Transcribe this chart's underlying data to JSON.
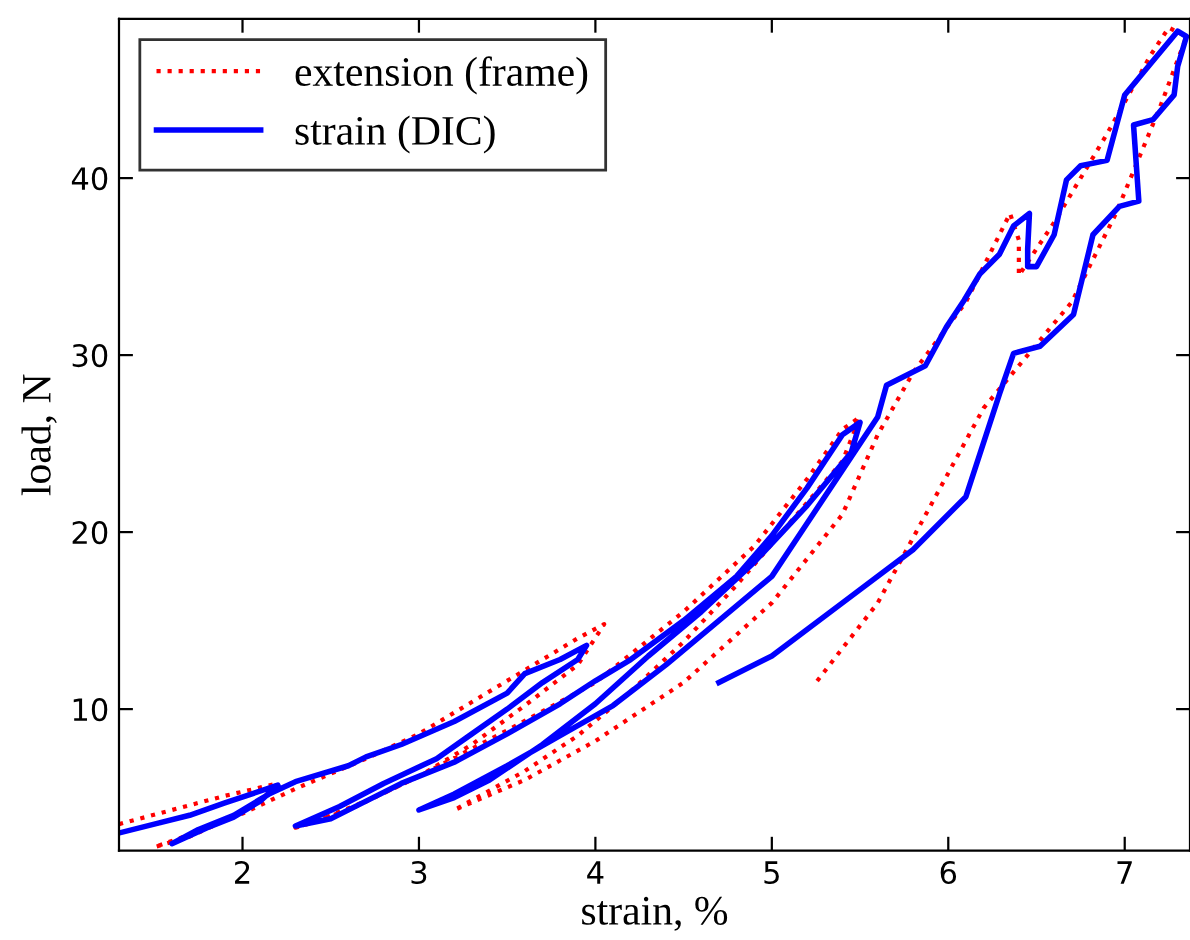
{
  "chart_data": {
    "type": "line",
    "xlabel": "strain, %",
    "ylabel": "load, N",
    "xlim": [
      1.3,
      7.37
    ],
    "ylim": [
      2.0,
      49.0
    ],
    "xticks": [
      2,
      3,
      4,
      5,
      6,
      7
    ],
    "yticks": [
      10,
      20,
      30,
      40
    ],
    "legend": "top left",
    "grid": false,
    "series": [
      {
        "name": "extension (frame)",
        "color": "#ff0000",
        "line_style": "dotted",
        "x": [
          1.3,
          1.6,
          1.9,
          2.2,
          2.1,
          1.9,
          1.7,
          1.5,
          1.7,
          2.0,
          2.3,
          2.7,
          3.0,
          3.3,
          3.6,
          3.9,
          4.05,
          3.9,
          3.6,
          3.3,
          3.0,
          2.7,
          2.4,
          2.3,
          2.6,
          3.0,
          3.5,
          4.0,
          4.5,
          4.9,
          5.2,
          5.4,
          5.5,
          5.4,
          5.1,
          4.8,
          4.5,
          4.2,
          3.9,
          3.6,
          3.2,
          3.6,
          4.0,
          4.5,
          5.0,
          5.4,
          5.6,
          5.8,
          6.1,
          6.35,
          6.4,
          6.4,
          6.6,
          6.9,
          7.15,
          7.25,
          7.35,
          7.2,
          6.95,
          6.7,
          6.45,
          6.2,
          5.9,
          5.6,
          5.25
        ],
        "values": [
          3.5,
          4.3,
          5.1,
          5.8,
          4.8,
          3.7,
          2.8,
          2.2,
          2.9,
          4.1,
          5.5,
          7.2,
          8.6,
          10.4,
          12.2,
          14.0,
          14.8,
          12.5,
          10.2,
          8.0,
          6.2,
          4.8,
          3.6,
          3.3,
          4.3,
          6.2,
          8.8,
          11.5,
          15.5,
          19.2,
          23.0,
          25.8,
          26.5,
          24.0,
          20.5,
          17.0,
          13.8,
          11.0,
          8.5,
          6.5,
          4.3,
          6.0,
          8.2,
          11.5,
          16.0,
          21.0,
          25.5,
          29.0,
          33.0,
          38.0,
          36.5,
          34.5,
          37.5,
          42.5,
          47.0,
          48.5,
          48.0,
          44.0,
          38.0,
          33.0,
          30.0,
          27.0,
          21.5,
          16.0,
          11.5
        ]
      },
      {
        "name": "strain (DIC)",
        "color": "#0000ff",
        "line_style": "solid",
        "x": [
          1.3,
          1.5,
          1.7,
          1.9,
          2.05,
          2.2,
          2.1,
          1.95,
          1.8,
          1.6,
          1.75,
          1.95,
          2.15,
          2.3,
          2.6,
          2.7,
          2.9,
          3.2,
          3.5,
          3.6,
          3.8,
          3.95,
          3.9,
          3.7,
          3.5,
          3.3,
          3.1,
          2.8,
          2.55,
          2.3,
          2.5,
          2.7,
          2.9,
          3.2,
          3.5,
          3.8,
          4.0,
          4.2,
          4.5,
          4.8,
          5.0,
          5.2,
          5.4,
          5.5,
          5.45,
          5.2,
          4.9,
          4.6,
          4.3,
          4.0,
          3.7,
          3.4,
          3.2,
          3.0,
          3.2,
          3.5,
          3.8,
          4.1,
          4.4,
          4.7,
          5.0,
          5.2,
          5.4,
          5.6,
          5.65,
          5.87,
          5.99,
          6.09,
          6.18,
          6.29,
          6.37,
          6.46,
          6.45,
          6.45,
          6.5,
          6.6,
          6.67,
          6.75,
          6.9,
          7.0,
          7.15,
          7.3,
          7.35,
          7.3,
          7.28,
          7.16,
          7.05,
          7.08,
          6.97,
          6.82,
          6.71,
          6.52,
          6.37,
          6.29,
          6.1,
          5.8,
          5.4,
          5.0,
          4.7
        ],
        "values": [
          3.0,
          3.5,
          4.0,
          4.7,
          5.2,
          5.7,
          4.8,
          3.9,
          3.3,
          2.4,
          3.2,
          4.0,
          5.2,
          5.9,
          6.8,
          7.3,
          8.0,
          9.3,
          10.9,
          12.0,
          12.8,
          13.6,
          12.8,
          11.5,
          10.0,
          8.6,
          7.2,
          5.8,
          4.5,
          3.4,
          3.8,
          4.8,
          5.8,
          7.0,
          8.6,
          10.3,
          11.6,
          12.8,
          15.0,
          17.5,
          19.8,
          22.5,
          25.5,
          26.2,
          24.5,
          21.5,
          18.3,
          15.5,
          13.0,
          10.3,
          8.0,
          6.0,
          5.0,
          4.3,
          5.2,
          6.8,
          8.5,
          10.2,
          12.5,
          15.0,
          17.5,
          20.5,
          23.5,
          26.5,
          28.3,
          29.4,
          31.6,
          33.1,
          34.6,
          35.7,
          37.3,
          38.0,
          36.0,
          35.0,
          35.0,
          36.8,
          39.9,
          40.7,
          41.0,
          44.7,
          46.5,
          48.3,
          48.0,
          46.3,
          44.7,
          43.3,
          43.0,
          38.7,
          38.4,
          36.8,
          32.3,
          30.5,
          30.1,
          27.8,
          22.0,
          19.0,
          16.0,
          13.0,
          11.5
        ]
      }
    ]
  }
}
